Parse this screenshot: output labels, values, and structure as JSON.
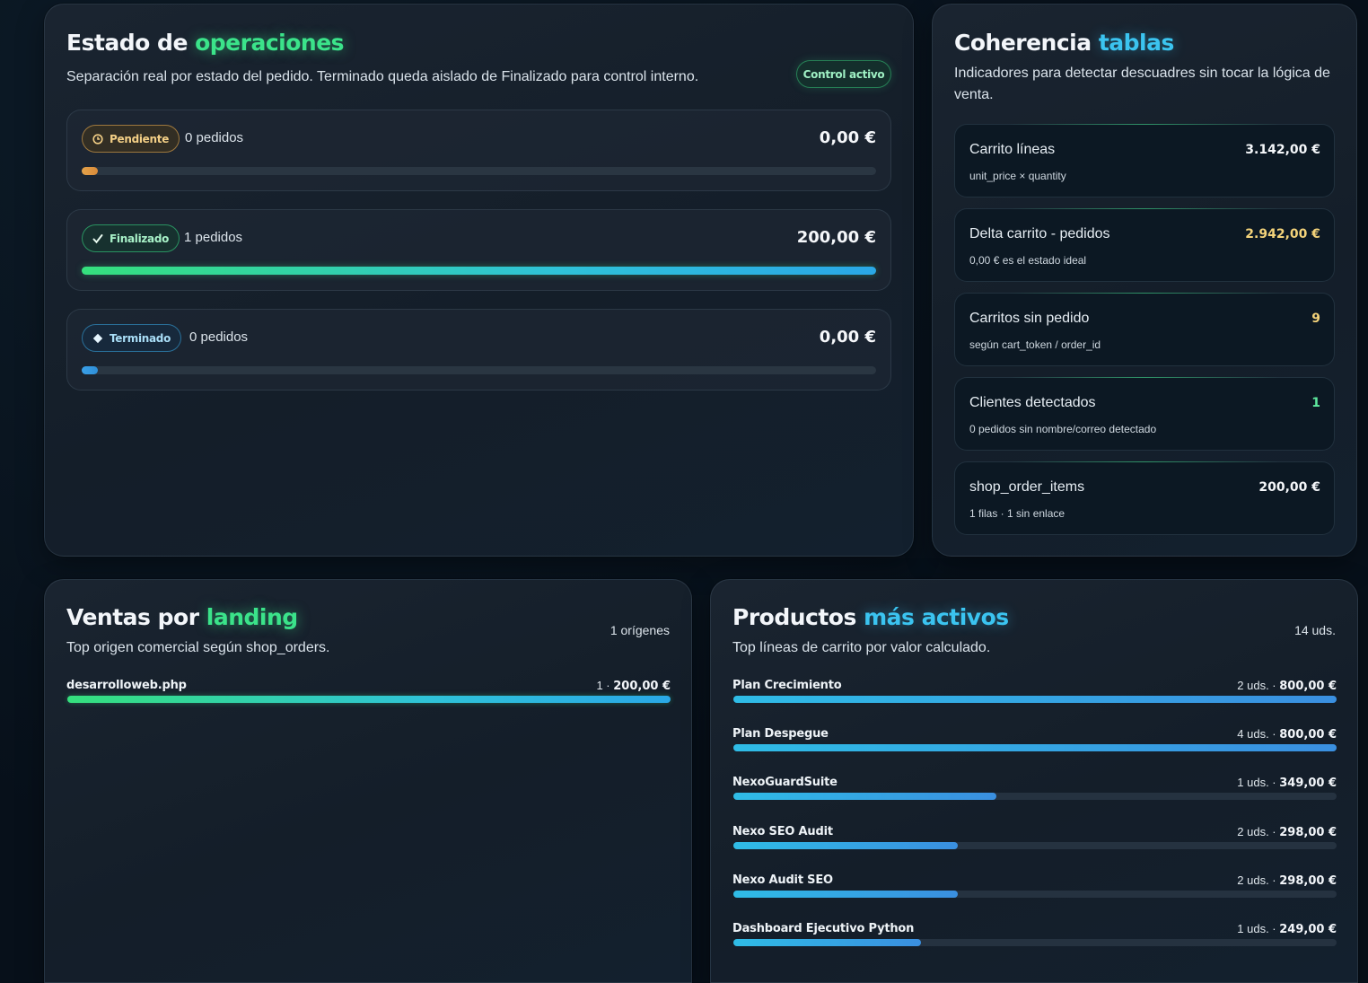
{
  "operations": {
    "title_a": "Estado de ",
    "title_b": "operaciones",
    "subtitle": "Separación real por estado del pedido. Terminado queda aislado de Finalizado para control interno.",
    "badge": "Control activo",
    "statuses": [
      {
        "label": "Pendiente",
        "icon": "clock-icon",
        "count": "0 pedidos",
        "amount": "0,00 €",
        "share": 0.02,
        "color": "#e3a24a"
      },
      {
        "label": "Finalizado",
        "icon": "check-icon",
        "count": "1 pedidos",
        "amount": "200,00 €",
        "share": 1.0,
        "color": "#35e07d"
      },
      {
        "label": "Terminado",
        "icon": "diamond-icon",
        "count": "0 pedidos",
        "amount": "0,00 €",
        "share": 0.02,
        "color": "#3aa0e8"
      }
    ]
  },
  "coherence": {
    "title_a": "Coherencia ",
    "title_b": "tablas",
    "subtitle": "Indicadores para detectar descuadres sin tocar la lógica de venta.",
    "metrics": [
      {
        "label": "Carrito líneas",
        "hint": "unit_price × quantity",
        "value": "3.142,00 €",
        "color": "#f5f7fa"
      },
      {
        "label": "Delta carrito - pedidos",
        "hint": "0,00 € es el estado ideal",
        "value": "2.942,00 €",
        "color": "#f4d37a"
      },
      {
        "label": "Carritos sin pedido",
        "hint": "según cart_token / order_id",
        "value": "9",
        "color": "#f4d37a"
      },
      {
        "label": "Clientes detectados",
        "hint": "0 pedidos sin nombre/correo detectado",
        "value": "1",
        "color": "#5ee89d"
      },
      {
        "label": "shop_order_items",
        "hint": "1 filas · 1 sin enlace",
        "value": "200,00 €",
        "color": "#f5f7fa"
      }
    ]
  },
  "landing": {
    "title_a": "Ventas por ",
    "title_b": "landing",
    "subtitle": "Top origen comercial según shop_orders.",
    "count": "1 orígenes",
    "rows": [
      {
        "name": "desarrolloweb.php",
        "meta_a": "1 · ",
        "meta_b": "200,00 €",
        "share": 1.0
      }
    ]
  },
  "products": {
    "title_a": "Productos ",
    "title_b": "más activos",
    "subtitle": "Top líneas de carrito por valor calculado.",
    "count": "14 uds.",
    "rows": [
      {
        "name": "Plan Crecimiento",
        "meta_a": "2 uds. · ",
        "meta_b": "800,00 €",
        "share": 1.0
      },
      {
        "name": "Plan Despegue",
        "meta_a": "4 uds. · ",
        "meta_b": "800,00 €",
        "share": 1.0
      },
      {
        "name": "NexoGuardSuite",
        "meta_a": "1 uds. · ",
        "meta_b": "349,00 €",
        "share": 0.436
      },
      {
        "name": "Nexo SEO Audit",
        "meta_a": "2 uds. · ",
        "meta_b": "298,00 €",
        "share": 0.3725
      },
      {
        "name": "Nexo Audit SEO",
        "meta_a": "2 uds. · ",
        "meta_b": "298,00 €",
        "share": 0.3725
      },
      {
        "name": "Dashboard Ejecutivo Python",
        "meta_a": "1 uds. · ",
        "meta_b": "249,00 €",
        "share": 0.311
      }
    ]
  }
}
